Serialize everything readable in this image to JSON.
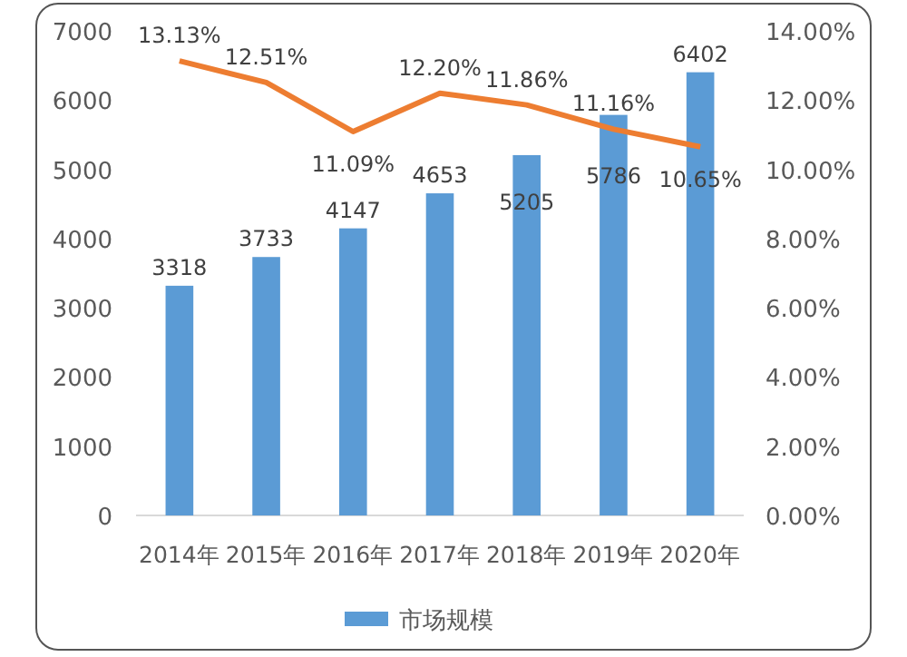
{
  "chart_data": {
    "type": "bar",
    "categories": [
      "2014年",
      "2015年",
      "2016年",
      "2017年",
      "2018年",
      "2019年",
      "2020年"
    ],
    "series": [
      {
        "name": "市场规模",
        "color": "#5b9bd5",
        "values": [
          3318,
          3733,
          4147,
          4653,
          5205,
          5786,
          6402
        ],
        "value_labels": [
          "3318",
          "3733",
          "4147",
          "4653",
          "5205",
          "5786",
          "6402"
        ]
      },
      {
        "type": "line",
        "axis": "y2",
        "color": "#ed7d31",
        "values": [
          13.13,
          12.51,
          11.09,
          12.2,
          11.86,
          11.16,
          10.65
        ],
        "value_labels": [
          "13.13%",
          "12.51%",
          "11.09%",
          "12.20%",
          "11.86%",
          "11.16%",
          "10.65%"
        ]
      }
    ],
    "ylim": [
      0,
      7000
    ],
    "yticks": [
      0,
      1000,
      2000,
      3000,
      4000,
      5000,
      6000,
      7000
    ],
    "y2lim": [
      0,
      14
    ],
    "y2ticks": [
      {
        "value": 0,
        "label": "0.00%"
      },
      {
        "value": 2,
        "label": "2.00%"
      },
      {
        "value": 4,
        "label": "4.00%"
      },
      {
        "value": 6,
        "label": "6.00%"
      },
      {
        "value": 8,
        "label": "8.00%"
      },
      {
        "value": 10,
        "label": "10.00%"
      },
      {
        "value": 12,
        "label": "12.00%"
      },
      {
        "value": 14,
        "label": "14.00%"
      }
    ],
    "grid": false,
    "legend": "bottom",
    "marker": "none",
    "line_style": "solid"
  }
}
